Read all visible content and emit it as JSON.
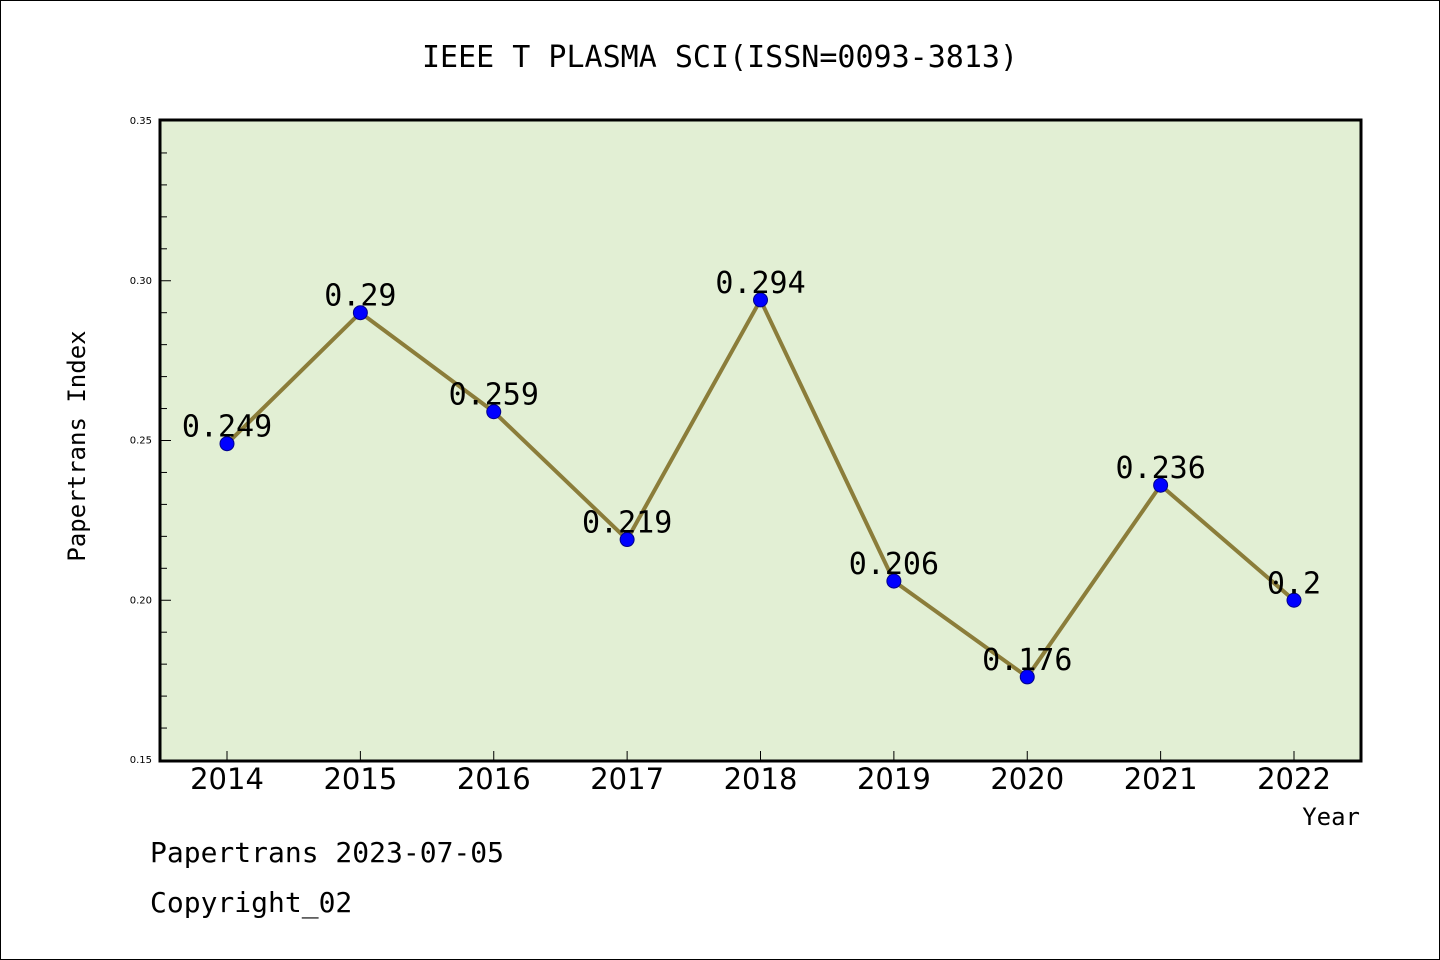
{
  "chart_data": {
    "type": "line",
    "title": "IEEE T PLASMA SCI(ISSN=0093-3813)",
    "xlabel": "Year",
    "ylabel": "Papertrans Index",
    "categories": [
      "2014",
      "2015",
      "2016",
      "2017",
      "2018",
      "2019",
      "2020",
      "2021",
      "2022"
    ],
    "series": [
      {
        "values": [
          0.249,
          0.29,
          0.259,
          0.219,
          0.294,
          0.206,
          0.176,
          0.236,
          0.2
        ],
        "data_labels": [
          "0.249",
          "0.29",
          "0.259",
          "0.219",
          "0.294",
          "0.206",
          "0.176",
          "0.236",
          "0.2"
        ],
        "line_color": "#8b7d3a",
        "marker_color": "#0000ff"
      }
    ],
    "ylim": [
      0.15,
      0.35
    ],
    "yticks": [
      0.15,
      0.2,
      0.25,
      0.3,
      0.35
    ],
    "ytick_labels": [
      "0.15",
      "0.20",
      "0.25",
      "0.30",
      "0.35"
    ],
    "plot_background": "#e2efd4",
    "grid": false,
    "legend": "none"
  },
  "footer": {
    "line1": "Papertrans 2023-07-05",
    "line2": "Copyright_02"
  }
}
